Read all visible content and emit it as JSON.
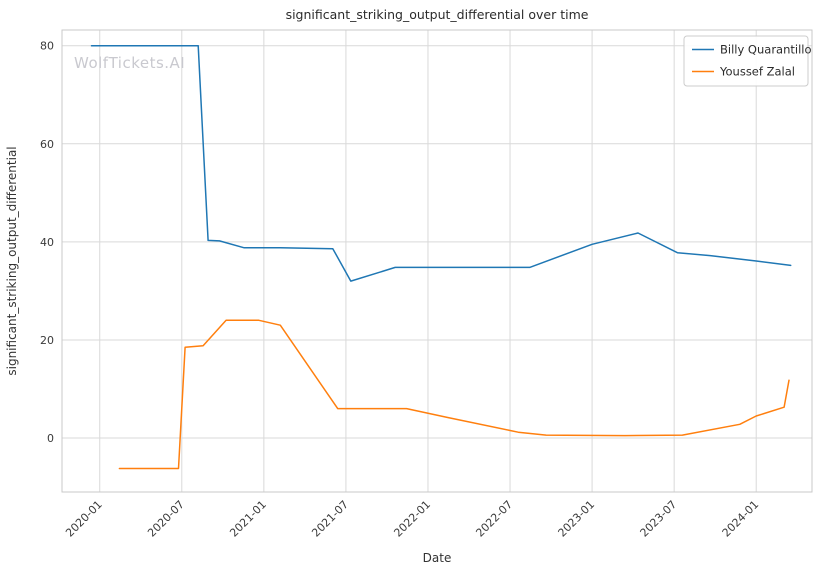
{
  "watermark": "WolfTickets.AI",
  "chart_data": {
    "type": "line",
    "title": "significant_striking_output_differential over time",
    "xlabel": "Date",
    "ylabel": "significant_striking_output_differential",
    "grid": true,
    "legend_position": "upper right",
    "background": "#ffffff",
    "grid_color": "#d9d9d9",
    "xlim": [
      2019.77,
      2024.34
    ],
    "ylim": [
      -11,
      83.2
    ],
    "xticks": [
      {
        "v": 2020.0,
        "label": "2020-01"
      },
      {
        "v": 2020.5,
        "label": "2020-07"
      },
      {
        "v": 2021.0,
        "label": "2021-01"
      },
      {
        "v": 2021.5,
        "label": "2021-07"
      },
      {
        "v": 2022.0,
        "label": "2022-01"
      },
      {
        "v": 2022.5,
        "label": "2022-07"
      },
      {
        "v": 2023.0,
        "label": "2023-01"
      },
      {
        "v": 2023.5,
        "label": "2023-07"
      },
      {
        "v": 2024.0,
        "label": "2024-01"
      }
    ],
    "yticks": [
      {
        "v": 0,
        "label": "0"
      },
      {
        "v": 20,
        "label": "20"
      },
      {
        "v": 40,
        "label": "40"
      },
      {
        "v": 60,
        "label": "60"
      },
      {
        "v": 80,
        "label": "80"
      }
    ],
    "series": [
      {
        "name": "Billy Quarantillo",
        "color": "#1f77b4",
        "points": [
          [
            2019.95,
            80
          ],
          [
            2020.6,
            80
          ],
          [
            2020.66,
            40.3
          ],
          [
            2020.73,
            40.2
          ],
          [
            2020.88,
            38.8
          ],
          [
            2021.1,
            38.8
          ],
          [
            2021.42,
            38.6
          ],
          [
            2021.53,
            32
          ],
          [
            2021.8,
            34.8
          ],
          [
            2022.2,
            34.8
          ],
          [
            2022.62,
            34.8
          ],
          [
            2023.0,
            39.5
          ],
          [
            2023.28,
            41.8
          ],
          [
            2023.52,
            37.8
          ],
          [
            2023.72,
            37.2
          ],
          [
            2024.0,
            36.1
          ],
          [
            2024.21,
            35.2
          ]
        ]
      },
      {
        "name": "Youssef Zalal",
        "color": "#ff7f0e",
        "points": [
          [
            2020.12,
            -6.2
          ],
          [
            2020.48,
            -6.2
          ],
          [
            2020.52,
            18.5
          ],
          [
            2020.63,
            18.8
          ],
          [
            2020.77,
            24
          ],
          [
            2020.97,
            24
          ],
          [
            2021.1,
            23
          ],
          [
            2021.45,
            6
          ],
          [
            2021.87,
            6
          ],
          [
            2022.12,
            4.2
          ],
          [
            2022.55,
            1.2
          ],
          [
            2022.72,
            0.6
          ],
          [
            2023.2,
            0.5
          ],
          [
            2023.55,
            0.6
          ],
          [
            2023.9,
            2.8
          ],
          [
            2024.0,
            4.5
          ],
          [
            2024.17,
            6.3
          ],
          [
            2024.2,
            11.8
          ]
        ]
      }
    ]
  }
}
